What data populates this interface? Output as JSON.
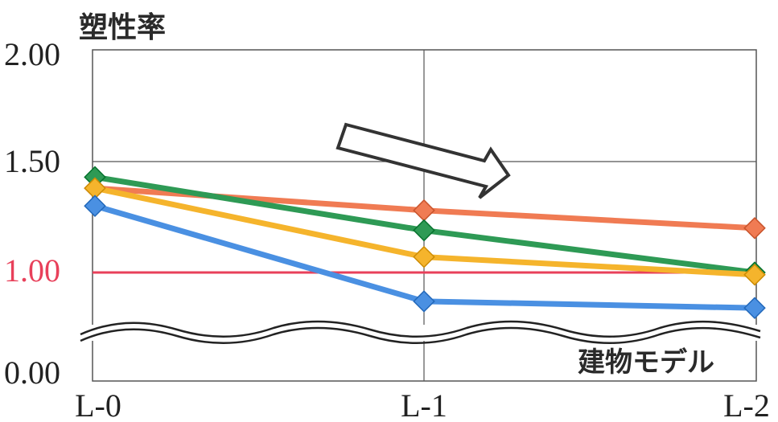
{
  "chart_data": {
    "type": "line",
    "ylabel": "塑性率",
    "xlabel": "建物モデル",
    "categories": [
      "L-0",
      "L-1",
      "L-2"
    ],
    "y_tick_labels": [
      "2.00",
      "1.50",
      "1.00",
      "0.00"
    ],
    "y_axis_break": "between 0.00 and 1.00 (wavy break lines)",
    "grid": true,
    "reference_line": {
      "value": 1.0,
      "color": "#e8405a",
      "label_color": "#e8405a"
    },
    "annotation": "hollow arrow pointing down-right (decreasing trend)",
    "series": [
      {
        "color": "#f07b53",
        "values": [
          1.38,
          1.28,
          1.2
        ]
      },
      {
        "color": "#2e9a55",
        "values": [
          1.43,
          1.19,
          1.0
        ]
      },
      {
        "color": "#f5b42c",
        "values": [
          1.38,
          1.07,
          0.99
        ]
      },
      {
        "color": "#4a90e2",
        "values": [
          1.3,
          0.87,
          0.84
        ]
      }
    ]
  }
}
